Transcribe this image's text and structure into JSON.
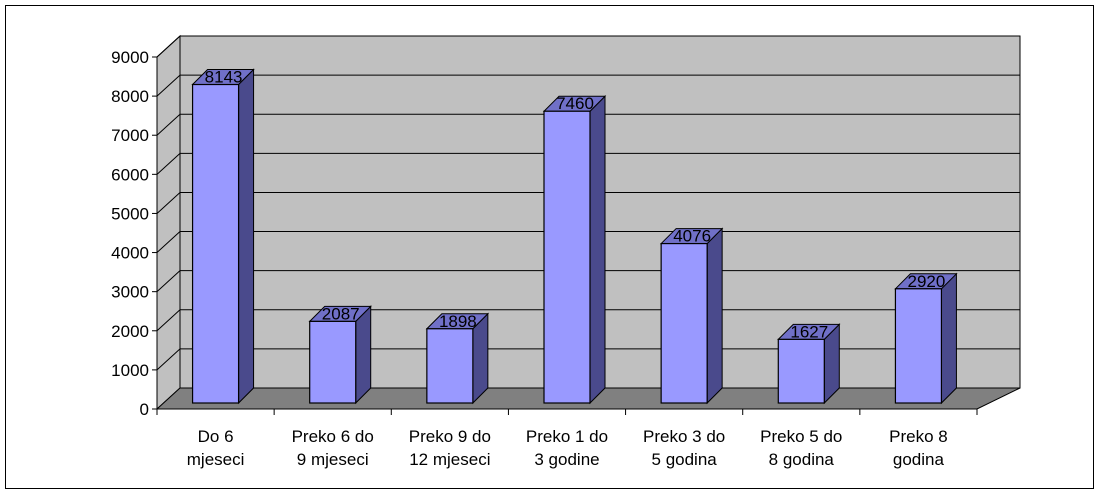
{
  "chart_data": {
    "type": "bar",
    "style": "3d-column",
    "categories": [
      [
        "Do 6",
        "mjeseci"
      ],
      [
        "Preko 6 do",
        "9 mjeseci"
      ],
      [
        "Preko 9 do",
        "12 mjeseci"
      ],
      [
        "Preko 1 do",
        "3 godine"
      ],
      [
        "Preko 3 do",
        "5 godina"
      ],
      [
        "Preko 5 do",
        "8 godina"
      ],
      [
        "Preko 8",
        "godina"
      ]
    ],
    "values": [
      8143,
      2087,
      1898,
      7460,
      4076,
      1627,
      2920
    ],
    "ylim": [
      0,
      9000
    ],
    "yticks": [
      0,
      1000,
      2000,
      3000,
      4000,
      5000,
      6000,
      7000,
      8000,
      9000
    ],
    "grid": true,
    "legend": "none",
    "colors": {
      "bar_front": "#9999ff",
      "bar_side": "#4a4a8c",
      "bar_top": "#7070c8",
      "wall": "#c0c0c0",
      "floor": "#808080",
      "grid": "#000000"
    }
  }
}
